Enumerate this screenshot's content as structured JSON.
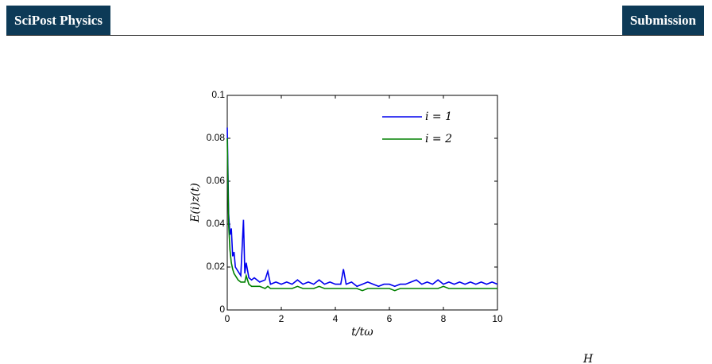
{
  "header": {
    "journal": "SciPost Physics",
    "status": "Submission"
  },
  "caption_fragment": "H",
  "chart_data": {
    "type": "line",
    "xlabel": "t/tω",
    "ylabel": "E(i)z(t)",
    "x": [
      0,
      0.05,
      0.1,
      0.15,
      0.2,
      0.25,
      0.3,
      0.4,
      0.5,
      0.6,
      0.65,
      0.7,
      0.8,
      0.9,
      1.0,
      1.2,
      1.4,
      1.5,
      1.6,
      1.8,
      2.0,
      2.2,
      2.4,
      2.6,
      2.8,
      3.0,
      3.2,
      3.4,
      3.6,
      3.8,
      4.0,
      4.2,
      4.3,
      4.4,
      4.6,
      4.8,
      5.0,
      5.2,
      5.4,
      5.6,
      5.8,
      6.0,
      6.2,
      6.4,
      6.6,
      6.8,
      7.0,
      7.2,
      7.4,
      7.6,
      7.8,
      8.0,
      8.2,
      8.4,
      8.6,
      8.8,
      9.0,
      9.2,
      9.4,
      9.6,
      9.8,
      10.0
    ],
    "series": [
      {
        "name": "i = 1",
        "color": "#0000ee",
        "values": [
          0.085,
          0.045,
          0.035,
          0.038,
          0.025,
          0.027,
          0.02,
          0.018,
          0.016,
          0.042,
          0.017,
          0.022,
          0.015,
          0.014,
          0.015,
          0.013,
          0.014,
          0.018,
          0.012,
          0.013,
          0.012,
          0.013,
          0.012,
          0.014,
          0.012,
          0.013,
          0.012,
          0.014,
          0.012,
          0.013,
          0.012,
          0.012,
          0.019,
          0.012,
          0.013,
          0.011,
          0.012,
          0.013,
          0.012,
          0.011,
          0.012,
          0.012,
          0.011,
          0.012,
          0.012,
          0.013,
          0.014,
          0.012,
          0.013,
          0.012,
          0.014,
          0.012,
          0.013,
          0.012,
          0.013,
          0.012,
          0.013,
          0.012,
          0.013,
          0.012,
          0.013,
          0.012
        ]
      },
      {
        "name": "i = 2",
        "color": "#008000",
        "values": [
          0.08,
          0.04,
          0.028,
          0.022,
          0.019,
          0.017,
          0.016,
          0.014,
          0.013,
          0.013,
          0.013,
          0.016,
          0.012,
          0.011,
          0.011,
          0.011,
          0.01,
          0.011,
          0.01,
          0.01,
          0.01,
          0.01,
          0.01,
          0.011,
          0.01,
          0.01,
          0.01,
          0.011,
          0.01,
          0.01,
          0.01,
          0.01,
          0.01,
          0.01,
          0.01,
          0.01,
          0.009,
          0.01,
          0.01,
          0.01,
          0.01,
          0.01,
          0.009,
          0.01,
          0.01,
          0.01,
          0.01,
          0.01,
          0.01,
          0.01,
          0.01,
          0.011,
          0.01,
          0.01,
          0.01,
          0.01,
          0.01,
          0.01,
          0.01,
          0.01,
          0.01,
          0.01
        ]
      }
    ],
    "xlim": [
      0,
      10
    ],
    "ylim": [
      0,
      0.1
    ],
    "xticks": [
      0,
      2,
      4,
      6,
      8,
      10
    ],
    "yticks": [
      0,
      0.02,
      0.04,
      0.06,
      0.08,
      0.1
    ],
    "legend": "upper right",
    "grid": false
  }
}
